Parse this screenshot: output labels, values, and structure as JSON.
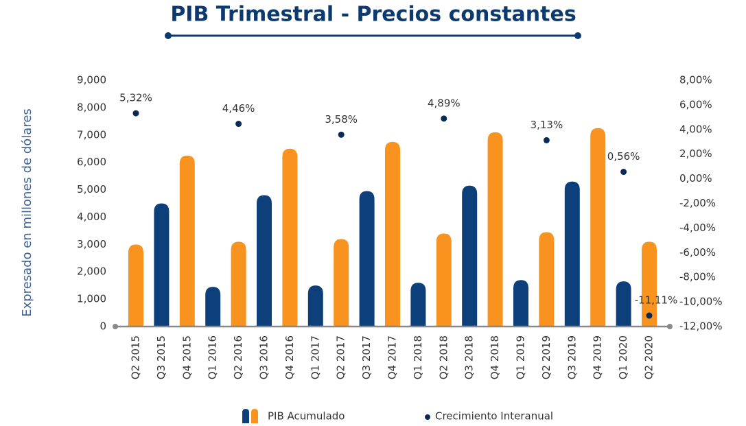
{
  "chart_data": {
    "type": "bar",
    "title": "PIB Trimestral - Precios constantes",
    "y_label": "Expresado en millones de dólares",
    "categories": [
      "Q2 2015",
      "Q3 2015",
      "Q4 2015",
      "Q1 2016",
      "Q2 2016",
      "Q3 2016",
      "Q4 2016",
      "Q1 2017",
      "Q2 2017",
      "Q3 2017",
      "Q4 2017",
      "Q1 2018",
      "Q2 2018",
      "Q3 2018",
      "Q4 2018",
      "Q1 2019",
      "Q2 2019",
      "Q3 2019",
      "Q4 2019",
      "Q1 2020",
      "Q2 2020"
    ],
    "series": [
      {
        "name": "PIB Acumulado",
        "type": "bar",
        "color": "#0d3f7a",
        "colors": [
          "#f7931e",
          "#0d3f7a",
          "#f7931e",
          "#0d3f7a",
          "#f7931e",
          "#0d3f7a",
          "#f7931e",
          "#0d3f7a",
          "#f7931e",
          "#0d3f7a",
          "#f7931e",
          "#0d3f7a",
          "#f7931e",
          "#0d3f7a",
          "#f7931e",
          "#0d3f7a",
          "#f7931e",
          "#0d3f7a",
          "#f7931e",
          "#0d3f7a",
          "#f7931e"
        ],
        "values": [
          3000,
          4500,
          6250,
          1450,
          3100,
          4800,
          6500,
          1500,
          3200,
          4950,
          6750,
          1600,
          3400,
          5150,
          7100,
          1700,
          3450,
          5300,
          7250,
          1650,
          3100
        ]
      },
      {
        "name": "Crecimiento Interanual",
        "type": "scatter",
        "axis": "y2",
        "color": "#0d2a55",
        "values": [
          5.32,
          null,
          null,
          null,
          4.46,
          null,
          null,
          null,
          3.58,
          null,
          null,
          null,
          4.89,
          null,
          null,
          null,
          3.13,
          null,
          null,
          0.56,
          -11.11
        ],
        "value_labels": [
          "5,32%",
          null,
          null,
          null,
          "4,46%",
          null,
          null,
          null,
          "3,58%",
          null,
          null,
          null,
          "4,89%",
          null,
          null,
          null,
          "3,13%",
          null,
          null,
          "0,56%",
          "-11,11%"
        ]
      }
    ],
    "ylim": [
      0,
      9000
    ],
    "yticks": [
      0,
      {
        "value": 1000,
        "label": "1,000"
      },
      {
        "value": 2000,
        "label": "2,000"
      },
      {
        "value": 3000,
        "label": "3,000"
      },
      {
        "value": 4000,
        "label": "4,000"
      },
      {
        "value": 5000,
        "label": "5,000"
      },
      {
        "value": 6000,
        "label": "6,000"
      },
      {
        "value": 7000,
        "label": "7,000"
      },
      {
        "value": 8000,
        "label": "8,000"
      },
      {
        "value": 9000,
        "label": "9,000"
      }
    ],
    "y2lim": [
      -12,
      8
    ],
    "y2ticks": [
      {
        "value": -12,
        "label": "-12,00%"
      },
      {
        "value": -10,
        "label": "-10,00%"
      },
      {
        "value": -8,
        "label": "-8,00%"
      },
      {
        "value": -6,
        "label": "-6,00%"
      },
      {
        "value": -4,
        "label": "-4,00%"
      },
      {
        "value": -2,
        "label": "-2,00%"
      },
      {
        "value": 0,
        "label": "0,00%"
      },
      {
        "value": 2,
        "label": "2,00%"
      },
      {
        "value": 4,
        "label": "4,00%"
      },
      {
        "value": 6,
        "label": "6,00%"
      },
      {
        "value": 8,
        "label": "8,00%"
      }
    ],
    "legend": "bottom"
  }
}
